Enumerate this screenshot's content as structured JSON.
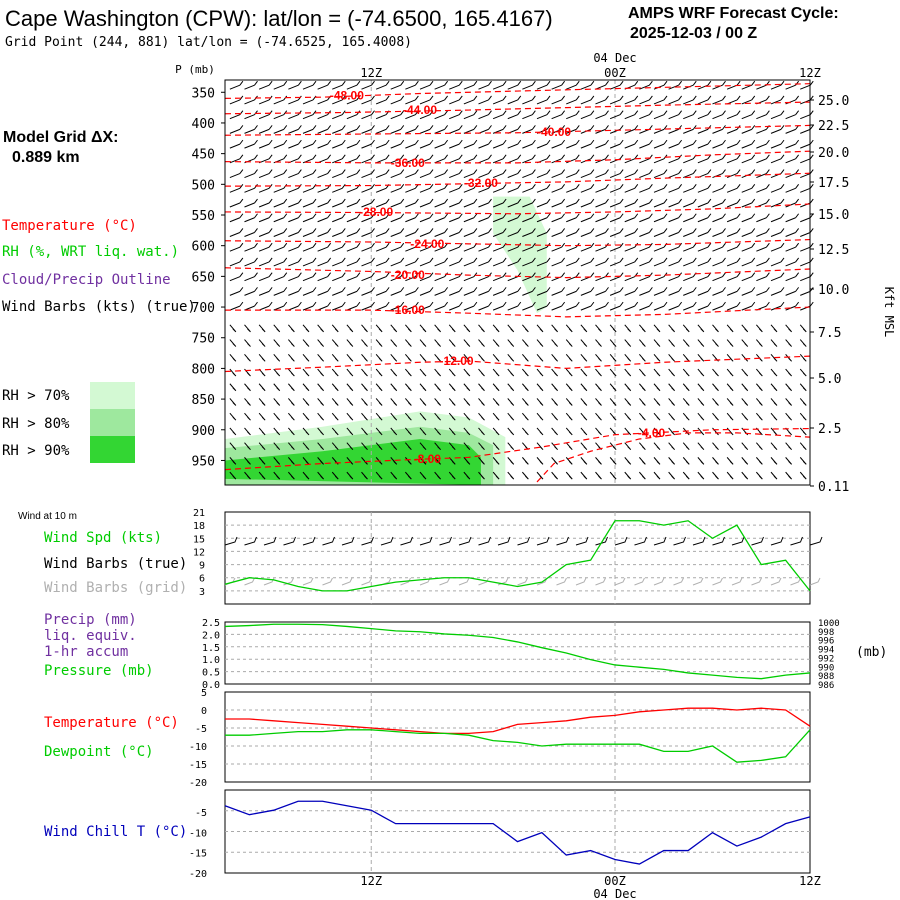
{
  "header": {
    "station_title": "Cape Washington (CPW):  lat/lon = (-74.6500, 165.4167)",
    "grid_point": "Grid Point (244, 881) lat/lon = (-74.6525, 165.4008)",
    "forecast_label": "AMPS WRF Forecast Cycle:",
    "cycle": "2025-12-03 / 00  Z"
  },
  "colors": {
    "temperature": "#ff0000",
    "rh": "#00cc00",
    "cloud": "#7030a0",
    "wind": "#000000",
    "wind_grid": "#b0b0b0",
    "dewpoint": "#00cc00",
    "wind_chill": "#0000bb",
    "rh70": "#d3f9d3",
    "rh80": "#9ee89e",
    "rh90": "#33d633"
  },
  "time_axis": {
    "top_labels": [
      "12Z",
      "00Z",
      "12Z"
    ],
    "date_label": "04 Dec",
    "bottom_labels": [
      "12Z",
      "00Z",
      "12Z"
    ]
  },
  "legend": {
    "model_grid_title": "Model Grid ΔX:",
    "model_grid_value": "0.889 km",
    "temperature": "Temperature (°C)",
    "rh": "RH (%, WRT liq. wat.)",
    "cloud": "Cloud/Precip Outline",
    "wind_barbs": "Wind Barbs (kts) (true)",
    "rh70": "RH > 70%",
    "rh80": "RH > 80%",
    "rh90": "RH > 90%"
  },
  "chart_data": [
    {
      "type": "time-height cross section",
      "name": "upper",
      "pressure_label": "P (mb)",
      "pressure_ticks": [
        350,
        400,
        450,
        500,
        550,
        600,
        650,
        700,
        750,
        800,
        850,
        900,
        950
      ],
      "height_label": "Kft MSL",
      "height_ticks": [
        "25.0",
        "22.5",
        "20.0",
        "17.5",
        "15.0",
        "12.5",
        "10.0",
        "7.5",
        "5.0",
        "2.5",
        "0.11"
      ],
      "temperature_contour_labels": [
        {
          "label": "-48.00",
          "hour": 5,
          "p": 355
        },
        {
          "label": "-44.00",
          "hour": 8,
          "p": 379
        },
        {
          "label": "-40.00",
          "hour": 13.5,
          "p": 415
        },
        {
          "label": "-36.00",
          "hour": 7.5,
          "p": 465
        },
        {
          "label": "-32.00",
          "hour": 10.5,
          "p": 498
        },
        {
          "label": "-28.00",
          "hour": 6.2,
          "p": 545
        },
        {
          "label": "-24.00",
          "hour": 8.3,
          "p": 597
        },
        {
          "label": "-20.00",
          "hour": 7.5,
          "p": 648
        },
        {
          "label": "-16.00",
          "hour": 7.5,
          "p": 705
        },
        {
          "label": "-12.00",
          "hour": 9.5,
          "p": 788
        },
        {
          "label": "-8.00",
          "hour": 8.3,
          "p": 948
        },
        {
          "label": "-4.00",
          "hour": 17.5,
          "p": 905
        }
      ],
      "temperature_contours": [
        {
          "value": -48,
          "points": [
            [
              0,
              360
            ],
            [
              4,
              358
            ],
            [
              8,
              352
            ],
            [
              12,
              348
            ],
            [
              16,
              344
            ],
            [
              20,
              340
            ],
            [
              24,
              336
            ]
          ]
        },
        {
          "value": -44,
          "points": [
            [
              0,
              385
            ],
            [
              5,
              383
            ],
            [
              10,
              379
            ],
            [
              14,
              375
            ],
            [
              18,
              371
            ],
            [
              24,
              366
            ]
          ]
        },
        {
          "value": -40,
          "points": [
            [
              0,
              420
            ],
            [
              6,
              418
            ],
            [
              12,
              416
            ],
            [
              16,
              412
            ],
            [
              20,
              408
            ],
            [
              24,
              404
            ]
          ]
        },
        {
          "value": -36,
          "points": [
            [
              0,
              463
            ],
            [
              6,
              465
            ],
            [
              12,
              465
            ],
            [
              16,
              460
            ],
            [
              20,
              452
            ],
            [
              24,
              446
            ]
          ]
        },
        {
          "value": -32,
          "points": [
            [
              0,
              503
            ],
            [
              6,
              502
            ],
            [
              10,
              499
            ],
            [
              14,
              496
            ],
            [
              18,
              490
            ],
            [
              24,
              482
            ]
          ]
        },
        {
          "value": -28,
          "points": [
            [
              0,
              545
            ],
            [
              6,
              546
            ],
            [
              12,
              548
            ],
            [
              16,
              545
            ],
            [
              20,
              540
            ],
            [
              24,
              532
            ]
          ]
        },
        {
          "value": -24,
          "points": [
            [
              0,
              592
            ],
            [
              6,
              594
            ],
            [
              10,
              597
            ],
            [
              14,
              600
            ],
            [
              18,
              598
            ],
            [
              24,
              590
            ]
          ]
        },
        {
          "value": -20,
          "points": [
            [
              0,
              636
            ],
            [
              6,
              642
            ],
            [
              10,
              648
            ],
            [
              14,
              652
            ],
            [
              18,
              648
            ],
            [
              24,
              638
            ]
          ]
        },
        {
          "value": -16,
          "points": [
            [
              0,
              705
            ],
            [
              6,
              705
            ],
            [
              10,
              710
            ],
            [
              14,
              716
            ],
            [
              18,
              712
            ],
            [
              24,
              700
            ]
          ]
        },
        {
          "value": -12,
          "points": [
            [
              0,
              805
            ],
            [
              4,
              798
            ],
            [
              8,
              790
            ],
            [
              10,
              788
            ],
            [
              14,
              800
            ],
            [
              18,
              790
            ],
            [
              24,
              780
            ]
          ]
        },
        {
          "value": -8,
          "points": [
            [
              0,
              965
            ],
            [
              4,
              955
            ],
            [
              8,
              948
            ],
            [
              10,
              945
            ],
            [
              13,
              928
            ],
            [
              16,
              908
            ],
            [
              20,
              900
            ],
            [
              24,
              898
            ]
          ]
        },
        {
          "value": -4,
          "points": [
            [
              12.8,
              985
            ],
            [
              13.5,
              955
            ],
            [
              15,
              935
            ],
            [
              17,
              915
            ],
            [
              19,
              905
            ],
            [
              21,
              905
            ],
            [
              24,
              912
            ]
          ]
        }
      ],
      "rh_regions": [
        {
          "threshold": ">70%",
          "points": [
            [
              0,
              990
            ],
            [
              0,
              915
            ],
            [
              4,
              895
            ],
            [
              8,
              870
            ],
            [
              10,
              880
            ],
            [
              11.5,
              912
            ],
            [
              11.5,
              990
            ]
          ]
        },
        {
          "threshold": ">70%",
          "points": [
            [
              11,
              520
            ],
            [
              12.5,
              520
            ],
            [
              13.2,
              580
            ],
            [
              13.2,
              700
            ],
            [
              12.8,
              710
            ],
            [
              12,
              640
            ],
            [
              11,
              580
            ]
          ]
        },
        {
          "threshold": ">80%",
          "points": [
            [
              0,
              990
            ],
            [
              0,
              930
            ],
            [
              4,
              915
            ],
            [
              8,
              895
            ],
            [
              10,
              905
            ],
            [
              11,
              925
            ],
            [
              11,
              990
            ]
          ]
        },
        {
          "threshold": ">90%",
          "points": [
            [
              0,
              980
            ],
            [
              0,
              950
            ],
            [
              4,
              935
            ],
            [
              8,
              915
            ],
            [
              10,
              925
            ],
            [
              10.5,
              945
            ],
            [
              10.5,
              990
            ]
          ]
        }
      ]
    },
    {
      "type": "line",
      "name": "surface wind",
      "panel_title": "Wind at 10 m",
      "series_label": "Wind Spd (kts)",
      "barbs_true_label": "Wind Barbs (true)",
      "barbs_grid_label": "Wind Barbs (grid)",
      "y_ticks": [
        21,
        18,
        15,
        12,
        9,
        6,
        3
      ],
      "ylim": [
        0,
        21
      ],
      "x": [
        0,
        1,
        2,
        3,
        4,
        5,
        6,
        7,
        8,
        9,
        10,
        11,
        12,
        13,
        14,
        15,
        16,
        17,
        18,
        19,
        20,
        21,
        22,
        23,
        24
      ],
      "values": [
        4.5,
        6,
        5.5,
        4,
        3,
        3,
        4,
        5,
        5.5,
        6,
        6,
        5,
        4,
        5,
        9,
        10,
        19,
        19,
        18,
        19,
        15,
        18,
        9,
        10,
        3
      ]
    },
    {
      "type": "line",
      "name": "precip/pressure",
      "precip_label": "Precip (mm)",
      "liq_label": "liq. equiv.",
      "accum_label": "1-hr accum",
      "pressure_label": "Pressure (mb)",
      "pressure_unit": "(mb)",
      "precip_ticks": [
        "2.5",
        "2.0",
        "1.5",
        "1.0",
        "0.5",
        "0.0"
      ],
      "pressure_ticks": [
        "1000",
        "998",
        "996",
        "994",
        "992",
        "990",
        "988",
        "986"
      ],
      "pressure_range": [
        986,
        1000
      ],
      "x": [
        0,
        1,
        2,
        3,
        4,
        5,
        6,
        7,
        8,
        9,
        10,
        11,
        12,
        13,
        14,
        15,
        16,
        17,
        18,
        19,
        20,
        21,
        22,
        23,
        24
      ],
      "pressure": [
        999,
        999.2,
        999.5,
        999.5,
        999.4,
        999,
        998.5,
        998,
        997.8,
        997.3,
        997,
        996.5,
        995.5,
        994.2,
        993,
        991.5,
        990.3,
        989.8,
        989.3,
        988.5,
        988,
        987.5,
        987.2,
        988,
        988.5
      ]
    },
    {
      "type": "line",
      "name": "temperature/dewpoint",
      "temperature_label": "Temperature (°C)",
      "dewpoint_label": "Dewpoint (°C)",
      "y_ticks": [
        "5",
        "0",
        "-5",
        "-10",
        "-15",
        "-20"
      ],
      "ylim": [
        -20,
        5
      ],
      "x": [
        0,
        1,
        2,
        3,
        4,
        5,
        6,
        7,
        8,
        9,
        10,
        11,
        12,
        13,
        14,
        15,
        16,
        17,
        18,
        19,
        20,
        21,
        22,
        23,
        24
      ],
      "temperature": [
        -2.5,
        -2.5,
        -3,
        -3.5,
        -4,
        -4.5,
        -5,
        -5.5,
        -6,
        -6.5,
        -6.5,
        -6,
        -4,
        -3.5,
        -3,
        -2,
        -1.5,
        -0.5,
        0,
        0.5,
        0.5,
        0,
        0.5,
        0,
        -4.5
      ],
      "dewpoint": [
        -7,
        -7,
        -6.5,
        -6,
        -6,
        -5.5,
        -5.5,
        -6,
        -6.5,
        -6.5,
        -7,
        -8.5,
        -9,
        -10,
        -9.5,
        -9.5,
        -9.5,
        -9.5,
        -11.5,
        -11.5,
        -10,
        -14.5,
        -14,
        -13,
        -5.5
      ]
    },
    {
      "type": "line",
      "name": "wind chill",
      "series_label": "Wind Chill T (°C)",
      "y_ticks": [
        "-5",
        "-10",
        "-15",
        "-20"
      ],
      "ylim": [
        -20,
        -1.5
      ],
      "x": [
        0,
        1,
        2,
        3,
        4,
        5,
        6,
        7,
        8,
        9,
        10,
        11,
        12,
        13,
        14,
        15,
        16,
        17,
        18,
        19,
        20,
        21,
        22,
        23,
        24
      ],
      "values": [
        -5,
        -7,
        -6,
        -4,
        -4,
        -5,
        -6,
        -9,
        -9,
        -9,
        -9,
        -9,
        -13,
        -11,
        -16,
        -15,
        -17,
        -18,
        -15,
        -15,
        -11,
        -14,
        -12,
        -9,
        -7.5
      ]
    }
  ]
}
